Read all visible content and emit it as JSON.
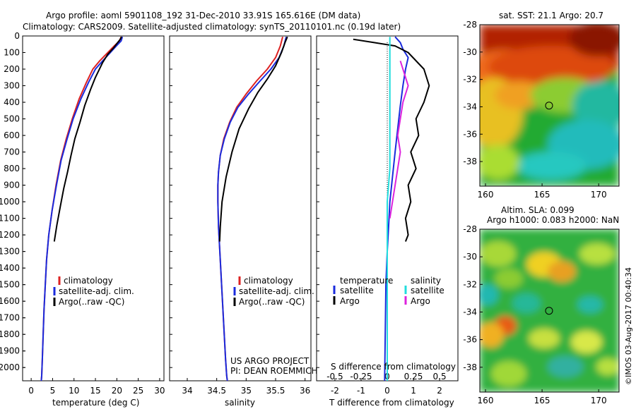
{
  "header": {
    "line1": "Argo profile: aoml 5901108_192 31-Dec-2010 33.91S 165.616E (DM data)",
    "line2": "Climatology: CARS2009. Satellite-adjusted climatology: synTS_20110101.nc (0.19d later)"
  },
  "credit": "©IMOS 03-Aug-2017 00:40:34",
  "project": {
    "line1": "US ARGO PROJECT",
    "line2": "PI: DEAN ROEMMICH"
  },
  "colors": {
    "climatology": "#dd2222",
    "satellite": "#1a2bdd",
    "argo": "#000000",
    "sal_satellite": "#22dddd",
    "sal_argo": "#dd22dd"
  },
  "chart_data": [
    {
      "id": "temp",
      "type": "line",
      "xlabel": "temperature (deg C)",
      "ylabel": "",
      "xlim": [
        -2,
        31
      ],
      "ylim": [
        2080,
        0
      ],
      "xticks": [
        0,
        5,
        10,
        15,
        20,
        25,
        30
      ],
      "yticks": [
        0,
        100,
        200,
        300,
        400,
        500,
        600,
        700,
        800,
        900,
        1000,
        1100,
        1200,
        1300,
        1400,
        1500,
        1600,
        1700,
        1800,
        1900,
        2000
      ],
      "legend": [
        "climatology",
        "satellite-adj. clim.",
        "Argo(..raw -QC)"
      ],
      "series": [
        {
          "name": "climatology",
          "color": "#dd2222",
          "x": [
            21.0,
            20.6,
            19.4,
            17.9,
            16.0,
            14.4,
            12.9,
            11.2,
            9.6,
            8.2,
            6.9,
            5.8,
            4.9,
            4.1,
            3.6,
            3.3,
            3.0,
            2.8,
            2.6,
            2.45,
            2.35
          ],
          "y": [
            5,
            30,
            60,
            100,
            150,
            200,
            280,
            380,
            500,
            620,
            750,
            900,
            1050,
            1200,
            1350,
            1500,
            1650,
            1800,
            1950,
            2050,
            2080
          ]
        },
        {
          "name": "satellite-adj. clim.",
          "color": "#1a2bdd",
          "x": [
            21.3,
            21.0,
            19.9,
            18.5,
            16.7,
            15.0,
            13.4,
            11.6,
            9.8,
            8.4,
            7.0,
            5.9,
            4.9,
            4.1,
            3.6,
            3.3,
            3.0,
            2.8,
            2.6,
            2.45,
            2.35
          ],
          "y": [
            5,
            30,
            60,
            100,
            150,
            200,
            280,
            380,
            500,
            620,
            750,
            900,
            1050,
            1200,
            1350,
            1500,
            1650,
            1800,
            1950,
            2050,
            2080
          ]
        },
        {
          "name": "Argo(..raw -QC)",
          "color": "#000000",
          "x": [
            21.1,
            20.8,
            20.2,
            19.3,
            17.9,
            16.7,
            15.0,
            13.9,
            12.5,
            11.4,
            10.2,
            9.3,
            8.5,
            7.6,
            6.8,
            6.0,
            5.4
          ],
          "y": [
            5,
            20,
            40,
            70,
            110,
            160,
            250,
            320,
            420,
            520,
            620,
            720,
            820,
            920,
            1030,
            1140,
            1240
          ]
        }
      ]
    },
    {
      "id": "sal",
      "type": "line",
      "xlabel": "salinity",
      "ylabel": "",
      "xlim": [
        33.7,
        36.1
      ],
      "ylim": [
        2080,
        0
      ],
      "xticks": [
        34,
        34.5,
        35,
        35.5,
        36
      ],
      "legend": [
        "climatology",
        "satellite-adj. clim.",
        "Argo(..raw -QC)"
      ],
      "series": [
        {
          "name": "climatology",
          "color": "#dd2222",
          "x": [
            35.62,
            35.58,
            35.5,
            35.36,
            35.18,
            35.0,
            34.84,
            34.72,
            34.62,
            34.56,
            34.53,
            34.52,
            34.52,
            34.53,
            34.56,
            34.59,
            34.62,
            34.65,
            34.67,
            34.68
          ],
          "y": [
            5,
            60,
            130,
            200,
            270,
            350,
            430,
            520,
            620,
            720,
            820,
            900,
            1000,
            1150,
            1350,
            1550,
            1750,
            1950,
            2050,
            2080
          ]
        },
        {
          "name": "satellite-adj. clim.",
          "color": "#1a2bdd",
          "x": [
            35.68,
            35.64,
            35.56,
            35.42,
            35.24,
            35.04,
            34.86,
            34.73,
            34.63,
            34.56,
            34.53,
            34.52,
            34.52,
            34.53,
            34.56,
            34.59,
            34.62,
            34.65,
            34.67,
            34.68
          ],
          "y": [
            5,
            60,
            130,
            200,
            270,
            350,
            430,
            520,
            620,
            720,
            820,
            900,
            1000,
            1150,
            1350,
            1550,
            1750,
            1950,
            2050,
            2080
          ]
        },
        {
          "name": "Argo(..raw -QC)",
          "color": "#000000",
          "x": [
            35.7,
            35.66,
            35.6,
            35.5,
            35.36,
            35.2,
            35.04,
            34.88,
            34.76,
            34.66,
            34.59,
            34.56,
            34.55
          ],
          "y": [
            5,
            40,
            100,
            180,
            260,
            340,
            440,
            560,
            700,
            850,
            1000,
            1150,
            1240
          ]
        }
      ]
    },
    {
      "id": "diff",
      "type": "line",
      "xlabel": "T difference from climatology",
      "xlabel_top": "S difference from climatology",
      "ylabel": "",
      "xlim": [
        -2.7,
        2.7
      ],
      "ylim": [
        2080,
        0
      ],
      "xticks": [
        -2,
        -1,
        0,
        1,
        2
      ],
      "xticks_top_labels": [
        "-0.5",
        "-0.25",
        "0",
        "0.25",
        "0.5"
      ],
      "legend": {
        "left_header": "temperature",
        "left_items": [
          "satellite",
          "Argo"
        ],
        "right_header": "salinity",
        "right_items": [
          "satellite",
          "Argo"
        ]
      },
      "series": [
        {
          "name": "T satellite",
          "color": "#1a2bdd",
          "x": [
            0.3,
            0.5,
            0.6,
            0.8,
            0.7,
            0.6,
            0.5,
            0.4,
            0.3,
            0.2,
            0.1,
            0.05,
            0.0,
            -0.05,
            -0.1
          ],
          "y": [
            5,
            40,
            80,
            130,
            200,
            300,
            420,
            560,
            700,
            850,
            1000,
            1150,
            1300,
            1500,
            2080
          ]
        },
        {
          "name": "T Argo",
          "color": "#000000",
          "x": [
            -1.3,
            -0.5,
            0.3,
            0.8,
            1.4,
            1.6,
            1.4,
            1.1,
            1.2,
            0.9,
            1.1,
            0.8,
            0.9,
            0.7,
            0.8,
            0.7
          ],
          "y": [
            20,
            40,
            60,
            100,
            200,
            300,
            400,
            500,
            600,
            700,
            800,
            900,
            1000,
            1100,
            1200,
            1240
          ]
        },
        {
          "name": "S satellite",
          "color": "#22dddd",
          "x": [
            0.1,
            0.1,
            0.1,
            0.1,
            0.1,
            0.0,
            0.0,
            0.0,
            0.0,
            0.0
          ],
          "y": [
            5,
            200,
            400,
            600,
            800,
            1000,
            1200,
            1400,
            1700,
            2080
          ]
        },
        {
          "name": "S Argo",
          "color": "#dd22dd",
          "x": [
            0.5,
            0.8,
            0.6,
            0.5,
            0.4,
            0.5,
            0.4,
            0.3,
            0.2,
            0.1
          ],
          "y": [
            150,
            300,
            400,
            500,
            600,
            700,
            800,
            900,
            1000,
            1100
          ]
        }
      ]
    },
    {
      "id": "map_sst",
      "type": "heatmap",
      "title": "sat. SST: 21.1 Argo: 20.7",
      "xlim": [
        159.5,
        171.8
      ],
      "ylim": [
        -39.8,
        -28
      ],
      "xticks": [
        160,
        165,
        170
      ],
      "yticks": [
        -28,
        -30,
        -32,
        -34,
        -36,
        -38
      ],
      "marker": {
        "lon": 165.616,
        "lat": -33.91
      }
    },
    {
      "id": "map_sla",
      "type": "heatmap",
      "title": "Altim. SLA: 0.099",
      "subtitle": "Argo h1000: 0.083 h2000: NaN",
      "xlim": [
        159.5,
        171.8
      ],
      "ylim": [
        -39.8,
        -28
      ],
      "xticks": [
        160,
        165,
        170
      ],
      "yticks": [
        -28,
        -30,
        -32,
        -34,
        -36,
        -38
      ],
      "marker": {
        "lon": 165.616,
        "lat": -33.91
      }
    }
  ]
}
